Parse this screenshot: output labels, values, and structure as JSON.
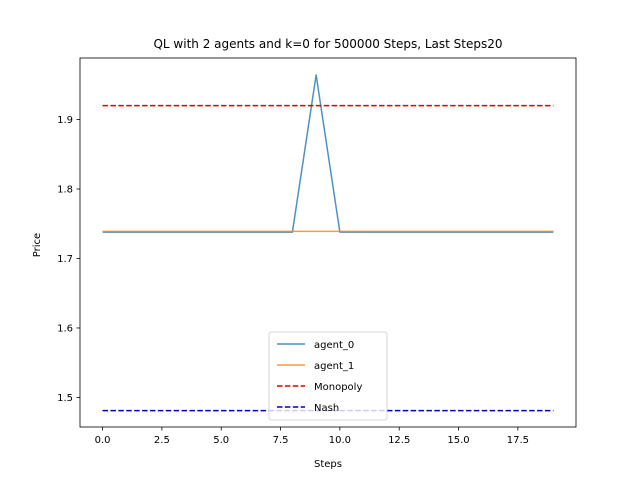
{
  "chart_data": {
    "type": "line",
    "title": "QL with 2 agents and k=0 for 500000 Steps, Last Steps20",
    "xlabel": "Steps",
    "ylabel": "Price",
    "xlim": [
      -0.95,
      19.95
    ],
    "ylim": [
      1.4575,
      1.9885
    ],
    "xticks": [
      0.0,
      2.5,
      5.0,
      7.5,
      10.0,
      12.5,
      15.0,
      17.5
    ],
    "xtick_labels": [
      "0.0",
      "2.5",
      "5.0",
      "7.5",
      "10.0",
      "12.5",
      "15.0",
      "17.5"
    ],
    "yticks": [
      1.5,
      1.6,
      1.7,
      1.8,
      1.9
    ],
    "ytick_labels": [
      "1.5",
      "1.6",
      "1.7",
      "1.8",
      "1.9"
    ],
    "grid": false,
    "legend_position": "lower-center",
    "x": [
      0,
      1,
      2,
      3,
      4,
      5,
      6,
      7,
      8,
      9,
      10,
      11,
      12,
      13,
      14,
      15,
      16,
      17,
      18,
      19
    ],
    "series": [
      {
        "name": "agent_0",
        "color": "#1f77b4",
        "style": "solid",
        "values": [
          1.738,
          1.738,
          1.738,
          1.738,
          1.738,
          1.738,
          1.738,
          1.738,
          1.738,
          1.964,
          1.738,
          1.738,
          1.738,
          1.738,
          1.738,
          1.738,
          1.738,
          1.738,
          1.738,
          1.738
        ]
      },
      {
        "name": "agent_1",
        "color": "#ff7f0e",
        "style": "solid",
        "values": [
          1.739,
          1.739,
          1.739,
          1.739,
          1.739,
          1.739,
          1.739,
          1.739,
          1.739,
          1.739,
          1.739,
          1.739,
          1.739,
          1.739,
          1.739,
          1.739,
          1.739,
          1.739,
          1.739,
          1.739
        ]
      },
      {
        "name": "Monopoly",
        "color": "#dd0000",
        "style": "dashed",
        "values": [
          1.92,
          1.92,
          1.92,
          1.92,
          1.92,
          1.92,
          1.92,
          1.92,
          1.92,
          1.92,
          1.92,
          1.92,
          1.92,
          1.92,
          1.92,
          1.92,
          1.92,
          1.92,
          1.92,
          1.92
        ]
      },
      {
        "name": "Nash",
        "color": "#0000bb",
        "style": "dashed",
        "values": [
          1.481,
          1.481,
          1.481,
          1.481,
          1.481,
          1.481,
          1.481,
          1.481,
          1.481,
          1.481,
          1.481,
          1.481,
          1.481,
          1.481,
          1.481,
          1.481,
          1.481,
          1.481,
          1.481,
          1.481
        ]
      }
    ]
  }
}
